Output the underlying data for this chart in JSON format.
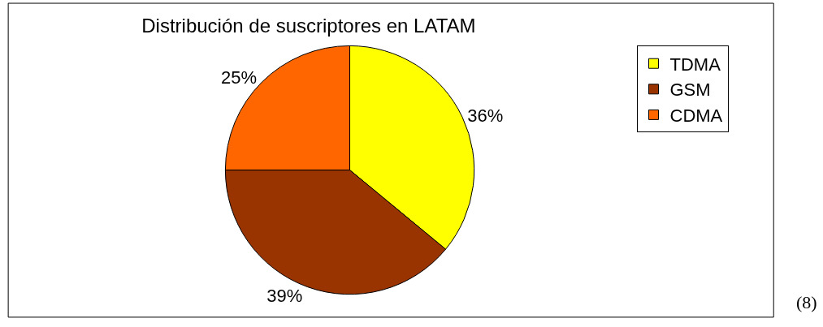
{
  "chart_data": {
    "type": "pie",
    "title": "Distribución de suscriptores en LATAM",
    "categories": [
      "TDMA",
      "GSM",
      "CDMA"
    ],
    "values": [
      36,
      39,
      25
    ],
    "value_labels": [
      "36%",
      "39%",
      "25%"
    ],
    "colors": [
      "#ffff00",
      "#993300",
      "#ff6600"
    ],
    "legend": "top right",
    "annotations": [
      "(8)"
    ]
  }
}
